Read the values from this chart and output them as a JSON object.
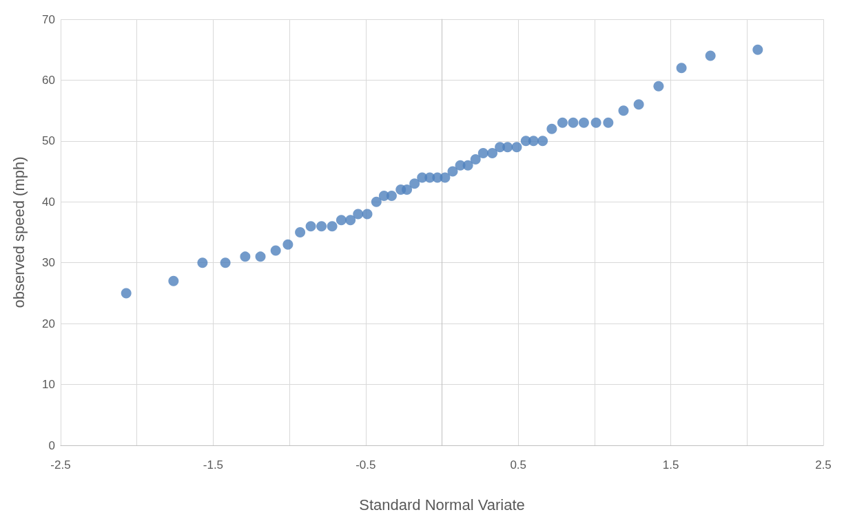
{
  "chart_data": {
    "type": "scatter",
    "xlabel": "Standard Normal Variate",
    "ylabel": "observed speed (mph)",
    "x": [
      -2.07,
      -1.76,
      -1.57,
      -1.42,
      -1.29,
      -1.19,
      -1.09,
      -1.01,
      -0.93,
      -0.86,
      -0.79,
      -0.72,
      -0.66,
      -0.6,
      -0.55,
      -0.49,
      -0.43,
      -0.38,
      -0.33,
      -0.27,
      -0.23,
      -0.18,
      -0.13,
      -0.08,
      -0.03,
      0.02,
      0.07,
      0.12,
      0.17,
      0.22,
      0.27,
      0.33,
      0.38,
      0.43,
      0.49,
      0.55,
      0.6,
      0.66,
      0.72,
      0.79,
      0.86,
      0.93,
      1.01,
      1.09,
      1.19,
      1.29,
      1.42,
      1.57,
      1.76,
      2.07
    ],
    "values": [
      25,
      27,
      30,
      30,
      31,
      31,
      32,
      33,
      35,
      36,
      36,
      36,
      37,
      37,
      38,
      38,
      40,
      41,
      41,
      42,
      42,
      43,
      44,
      44,
      44,
      44,
      45,
      46,
      46,
      47,
      48,
      48,
      49,
      49,
      49,
      50,
      50,
      50,
      52,
      53,
      53,
      53,
      53,
      53,
      55,
      56,
      59,
      62,
      64,
      65
    ],
    "color": "#4f81bd",
    "marker": "circle",
    "xlim": [
      -2.5,
      2.5
    ],
    "xticks": [
      -2.5,
      {
        "value": -2,
        "label": null
      },
      -1.5,
      {
        "value": -1,
        "label": null
      },
      -0.5,
      {
        "value": 0,
        "label": null
      },
      0.5,
      {
        "value": 1,
        "label": null
      },
      1.5,
      {
        "value": 2,
        "label": null
      },
      2.5
    ],
    "ylim": [
      0,
      70
    ],
    "yticks": [
      0,
      10,
      20,
      30,
      40,
      50,
      60,
      70
    ],
    "grid": true
  }
}
